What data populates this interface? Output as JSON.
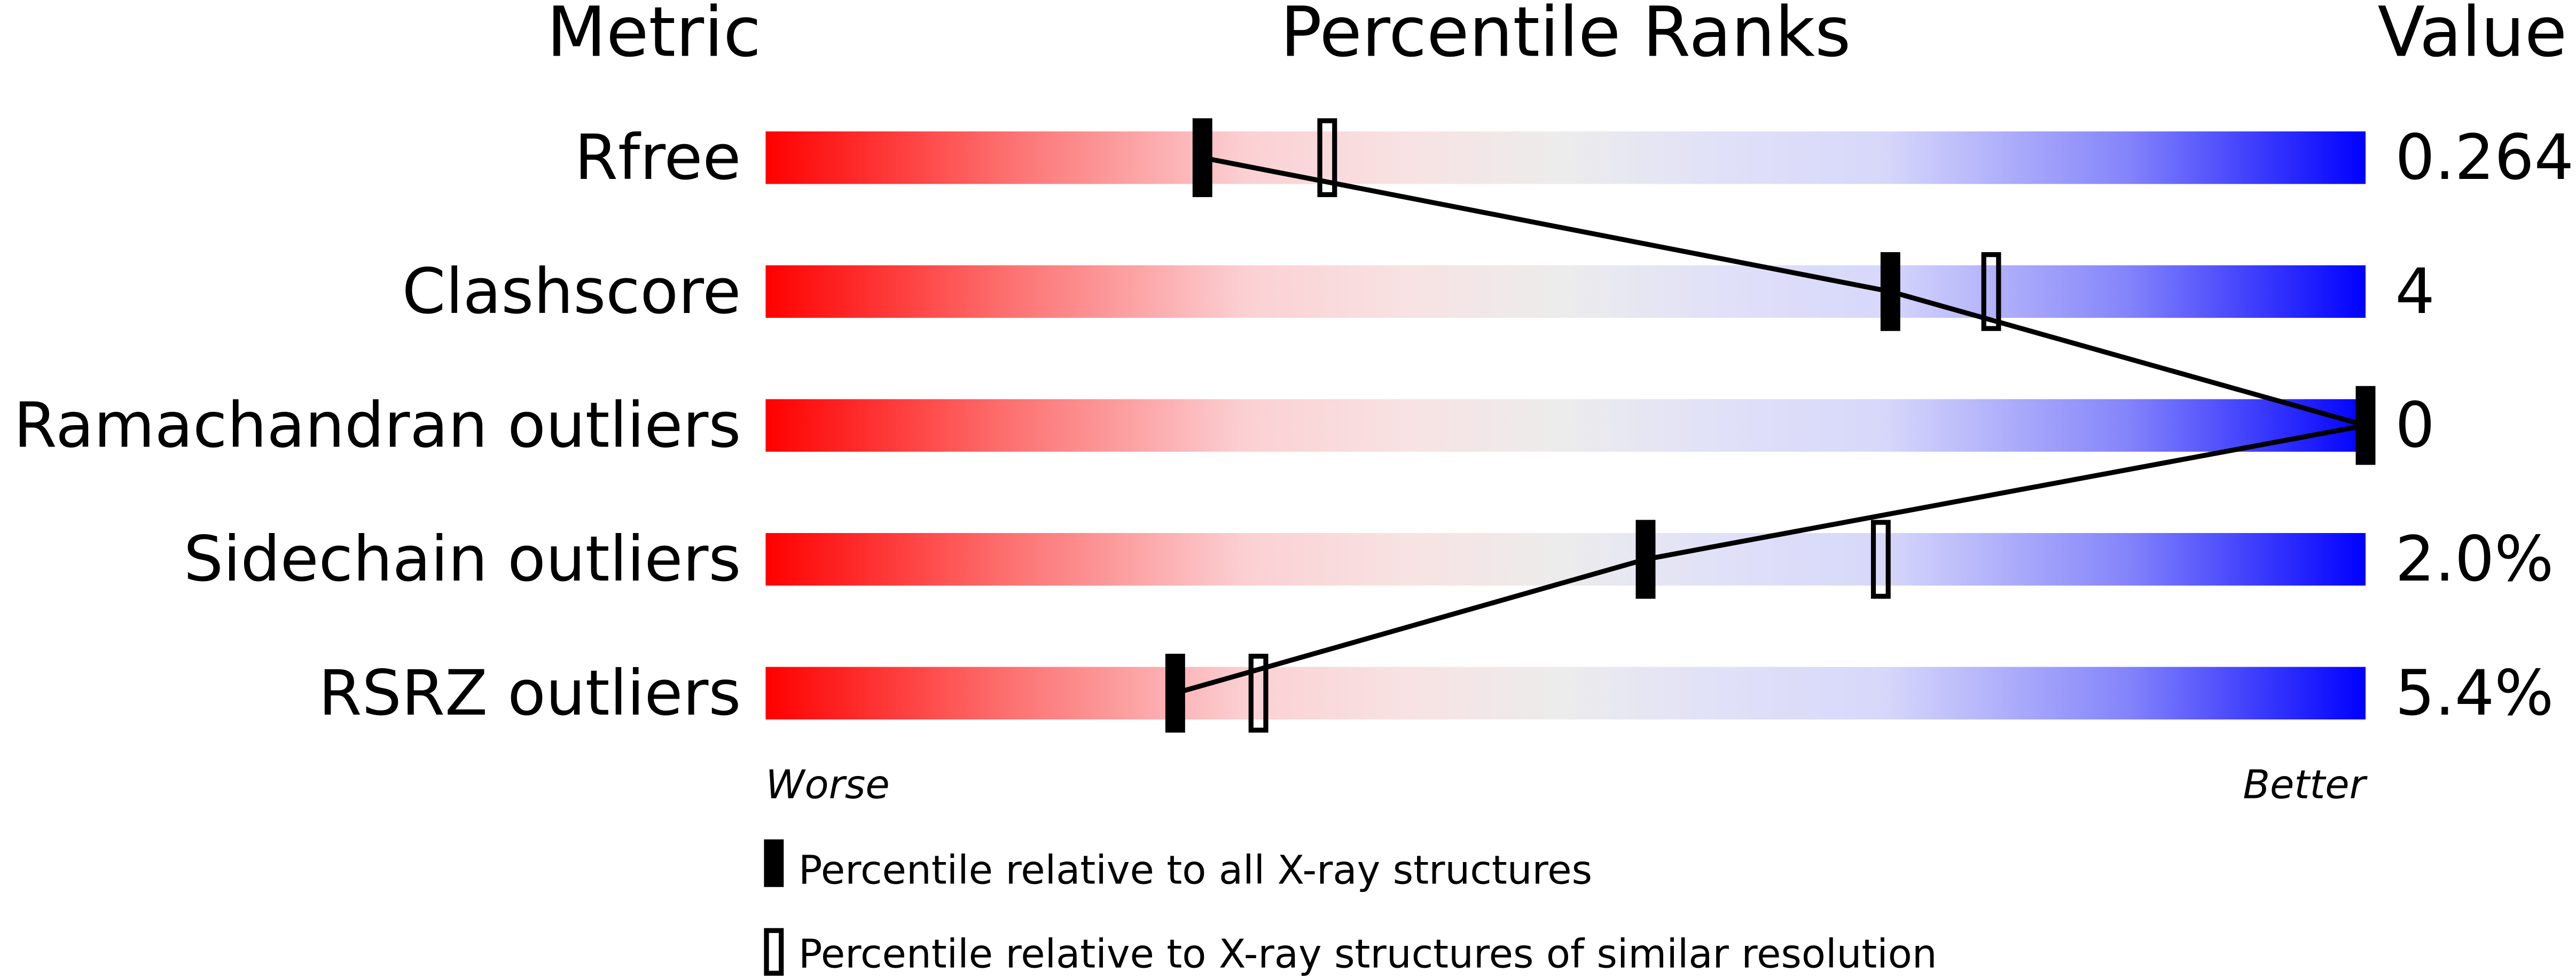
{
  "chart_data": {
    "type": "percentile-bars",
    "headers": {
      "metric": "Metric",
      "ranks": "Percentile Ranks",
      "value": "Value"
    },
    "xlim": [
      0,
      100
    ],
    "rows": [
      {
        "metric": "Rfree",
        "value": "0.264",
        "percentile_all": 27.3,
        "percentile_similar": 35.1
      },
      {
        "metric": "Clashscore",
        "value": "4",
        "percentile_all": 70.3,
        "percentile_similar": 76.6
      },
      {
        "metric": "Ramachandran outliers",
        "value": "0",
        "percentile_all": 100,
        "percentile_similar": null
      },
      {
        "metric": "Sidechain outliers",
        "value": "2.0%",
        "percentile_all": 55.0,
        "percentile_similar": 69.7
      },
      {
        "metric": "RSRZ outliers",
        "value": "5.4%",
        "percentile_all": 25.6,
        "percentile_similar": 30.8
      }
    ],
    "axis_labels": {
      "worse": "Worse",
      "better": "Better"
    },
    "legend": {
      "all": "Percentile relative to all X-ray structures",
      "similar": "Percentile relative to X-ray structures of similar resolution"
    },
    "colors": {
      "worse": "#ff0000",
      "mid": "#ececec",
      "better": "#0000ff",
      "marker": "#000000"
    }
  }
}
